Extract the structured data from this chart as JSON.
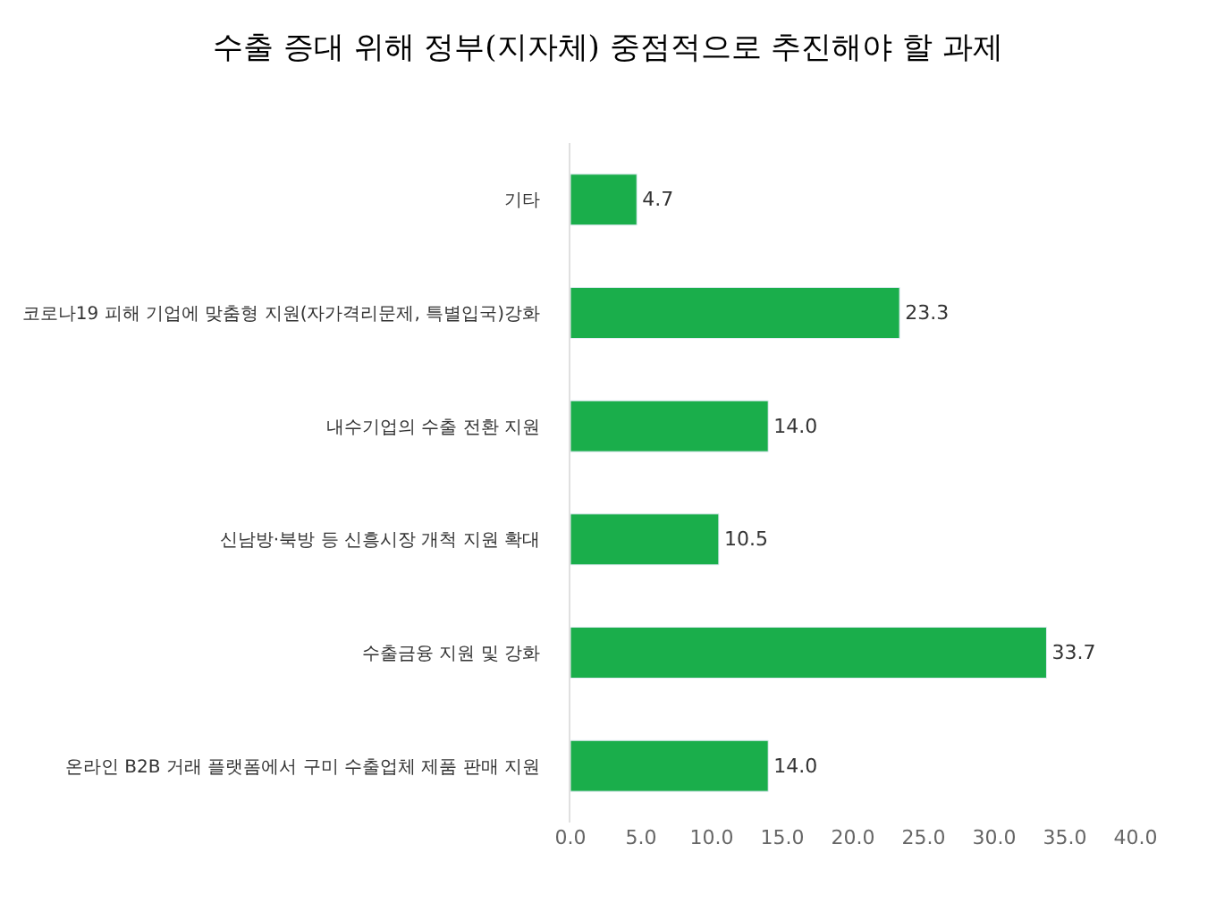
{
  "chart_data": {
    "type": "bar",
    "orientation": "horizontal",
    "title": "수출 증대 위해 정부(지자체) 중점적으로 추진해야 할 과제",
    "categories": [
      "기타",
      "코로나19 피해 기업에 맞춤형 지원(자가격리문제, 특별입국)강화",
      "내수기업의 수출 전환 지원",
      "신남방·북방 등 신흥시장 개척 지원 확대",
      "수출금융 지원 및 강화",
      "온라인 B2B 거래 플랫폼에서 구미 수출업체 제품 판매 지원"
    ],
    "values": [
      4.7,
      23.3,
      14.0,
      10.5,
      33.7,
      14.0
    ],
    "value_labels": [
      "4.7",
      "23.3",
      "14.0",
      "10.5",
      "33.7",
      "14.0"
    ],
    "color": "#1aae4b",
    "xlim": [
      0,
      40
    ],
    "xticks": [
      {
        "value": 0,
        "label": "0.0"
      },
      {
        "value": 5,
        "label": "5.0"
      },
      {
        "value": 10,
        "label": "10.0"
      },
      {
        "value": 15,
        "label": "15.0"
      },
      {
        "value": 20,
        "label": "20.0"
      },
      {
        "value": 25,
        "label": "25.0"
      },
      {
        "value": 30,
        "label": "30.0"
      },
      {
        "value": 35,
        "label": "35.0"
      },
      {
        "value": 40,
        "label": "40.0"
      }
    ]
  }
}
